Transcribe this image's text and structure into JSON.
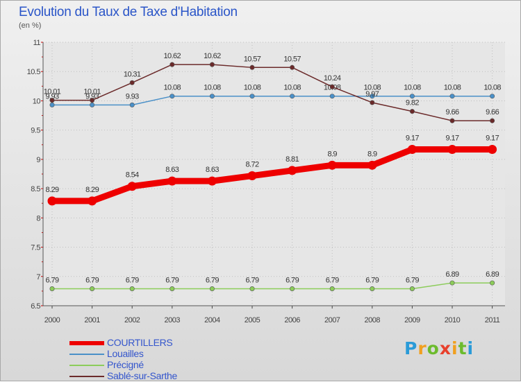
{
  "chart_data": {
    "type": "line",
    "title": "Evolution du Taux de Taxe d'Habitation",
    "subtitle": "(en %)",
    "x": [
      "2000",
      "2001",
      "2002",
      "2003",
      "2004",
      "2005",
      "2006",
      "2007",
      "2008",
      "2009",
      "2010",
      "2011"
    ],
    "ylim": [
      6.5,
      11
    ],
    "yticks": [
      "6.5",
      "7",
      "7.5",
      "8",
      "8.5",
      "9",
      "9.5",
      "10",
      "10.5",
      "11"
    ],
    "grid": true,
    "legend_position": "bottom-left",
    "series": [
      {
        "name": "COURTILLERS",
        "color": "#ee0000",
        "values": [
          8.29,
          8.29,
          8.54,
          8.63,
          8.63,
          8.72,
          8.81,
          8.9,
          8.9,
          9.17,
          9.17,
          9.17
        ]
      },
      {
        "name": "Louailles",
        "color": "#4a90c8",
        "values": [
          9.93,
          9.93,
          9.93,
          10.08,
          10.08,
          10.08,
          10.08,
          10.08,
          10.08,
          10.08,
          10.08,
          10.08
        ]
      },
      {
        "name": "Précigné",
        "color": "#8ccc5a",
        "values": [
          6.79,
          6.79,
          6.79,
          6.79,
          6.79,
          6.79,
          6.79,
          6.79,
          6.79,
          6.79,
          6.89,
          6.89
        ]
      },
      {
        "name": "Sablé-sur-Sarthe",
        "color": "#6b2a2a",
        "values": [
          10.01,
          10.01,
          10.31,
          10.62,
          10.62,
          10.57,
          10.57,
          10.24,
          9.97,
          9.82,
          9.66,
          9.66
        ]
      }
    ]
  },
  "logo": {
    "text": "Proxiti"
  }
}
